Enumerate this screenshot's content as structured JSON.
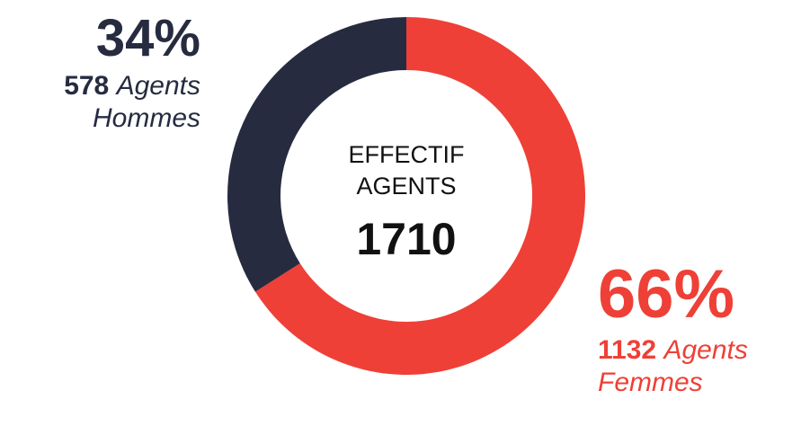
{
  "chart_data": {
    "type": "donut",
    "title": "EFFECTIF AGENTS",
    "total": 1710,
    "categories": [
      "Agents Hommes",
      "Agents Femmes"
    ],
    "values": [
      34,
      66
    ],
    "value_labels": [
      "34%",
      "66%"
    ],
    "counts": [
      578,
      1132
    ],
    "colors": [
      "#262b40",
      "#ee4037"
    ]
  }
}
